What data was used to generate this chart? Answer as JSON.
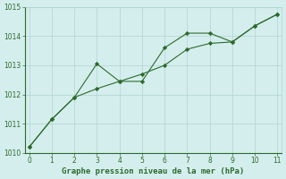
{
  "line1_x": [
    0,
    1,
    2,
    3,
    4,
    5,
    6,
    7,
    8,
    9,
    10,
    11
  ],
  "line1_y": [
    1010.2,
    1011.15,
    1011.9,
    1013.05,
    1012.45,
    1012.45,
    1013.6,
    1014.1,
    1014.1,
    1013.8,
    1014.35,
    1014.75
  ],
  "line2_x": [
    0,
    1,
    2,
    3,
    4,
    5,
    6,
    7,
    8,
    9,
    10,
    11
  ],
  "line2_y": [
    1010.2,
    1011.15,
    1011.9,
    1012.2,
    1012.45,
    1012.7,
    1013.0,
    1013.55,
    1013.75,
    1013.8,
    1014.35,
    1014.75
  ],
  "line_color": "#2d6a2d",
  "bg_color": "#d4eeed",
  "grid_color": "#b0d4d0",
  "xlabel": "Graphe pression niveau de la mer (hPa)",
  "ylim": [
    1010,
    1015
  ],
  "xlim": [
    -0.2,
    11.2
  ],
  "yticks": [
    1010,
    1011,
    1012,
    1013,
    1014,
    1015
  ],
  "xticks": [
    0,
    1,
    2,
    3,
    4,
    5,
    6,
    7,
    8,
    9,
    10,
    11
  ],
  "tick_fontsize": 5.5,
  "xlabel_fontsize": 6.5
}
